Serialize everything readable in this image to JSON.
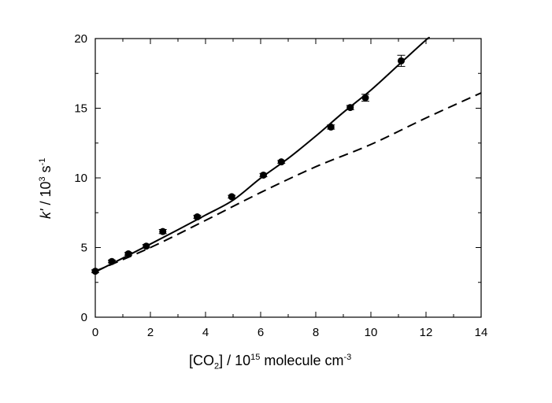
{
  "chart_data": {
    "type": "scatter",
    "x": [
      0.0,
      0.6,
      1.2,
      1.85,
      2.45,
      3.7,
      4.95,
      6.1,
      6.75,
      8.55,
      9.25,
      9.8,
      11.1
    ],
    "y": [
      3.3,
      4.0,
      4.55,
      5.1,
      6.15,
      7.2,
      8.65,
      10.2,
      11.15,
      13.65,
      15.05,
      15.75,
      18.4
    ],
    "y_err": [
      0.1,
      0.1,
      0.1,
      0.12,
      0.15,
      0.12,
      0.1,
      0.12,
      0.1,
      0.15,
      0.15,
      0.25,
      0.4
    ],
    "fit_solid": {
      "style": "solid",
      "x": [
        0,
        1,
        2,
        3,
        4,
        5,
        6,
        7,
        8,
        9,
        10,
        11,
        12,
        12.1
      ],
      "y": [
        3.25,
        4.24,
        5.25,
        6.28,
        7.33,
        8.4,
        9.98,
        11.4,
        13.0,
        14.7,
        16.3,
        18.1,
        19.9,
        20.0
      ]
    },
    "fit_dashed": {
      "style": "dashed",
      "x": [
        0,
        2,
        4,
        6,
        8,
        10,
        12,
        14
      ],
      "y": [
        3.3,
        5.0,
        6.95,
        8.95,
        10.8,
        12.4,
        14.3,
        16.1
      ]
    },
    "xlim": [
      0,
      14
    ],
    "ylim": [
      0,
      20
    ],
    "xticks": [
      "0",
      "2",
      "4",
      "6",
      "8",
      "10",
      "12",
      "14"
    ],
    "xtick_values": [
      0,
      2,
      4,
      6,
      8,
      10,
      12,
      14
    ],
    "yticks": [
      "0",
      "5",
      "10",
      "15",
      "20"
    ],
    "ytick_values": [
      0,
      5,
      10,
      15,
      20
    ],
    "xlabel": {
      "main": "[CO",
      "sub": "2",
      "rest": "] / 10",
      "sup": "15",
      "rest2": " molecule cm",
      "sup2": "-3"
    },
    "ylabel": {
      "italic": "k'",
      "rest": " / 10",
      "sup": "3",
      "rest2": " s",
      "sup2": "-1"
    },
    "grid": false,
    "legend": false
  }
}
